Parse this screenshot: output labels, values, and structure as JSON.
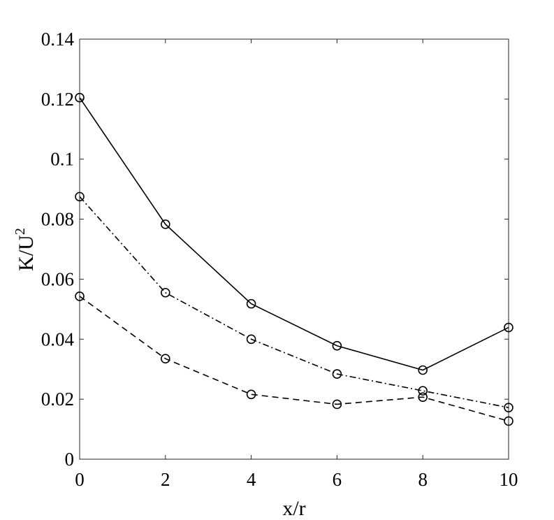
{
  "chart_data": {
    "type": "line",
    "xlabel": "x/r",
    "ylabel_base": "K/U",
    "ylabel_sup": "2",
    "xlim": [
      0,
      10
    ],
    "ylim": [
      0,
      0.14
    ],
    "xticks": [
      0,
      2,
      4,
      6,
      8,
      10
    ],
    "xtick_labels": [
      "0",
      "2",
      "4",
      "6",
      "8",
      "10"
    ],
    "yticks": [
      0,
      0.02,
      0.04,
      0.06,
      0.08,
      0.1,
      0.12,
      0.14
    ],
    "ytick_labels": [
      "0",
      "0.02",
      "0.04",
      "0.06",
      "0.08",
      "0.1",
      "0.12",
      "0.14"
    ],
    "grid": false,
    "x": [
      0,
      2,
      4,
      6,
      8,
      10
    ],
    "series": [
      {
        "style": "solid",
        "marker": "circle",
        "color": "#000000",
        "values": [
          0.1205,
          0.0783,
          0.0518,
          0.0378,
          0.0297,
          0.0439
        ]
      },
      {
        "style": "dashdot",
        "marker": "circle",
        "color": "#000000",
        "values": [
          0.0875,
          0.0555,
          0.04,
          0.0284,
          0.0228,
          0.0172
        ]
      },
      {
        "style": "dashed",
        "marker": "circle",
        "color": "#000000",
        "values": [
          0.0543,
          0.0335,
          0.0216,
          0.0183,
          0.0207,
          0.0127
        ]
      }
    ]
  }
}
